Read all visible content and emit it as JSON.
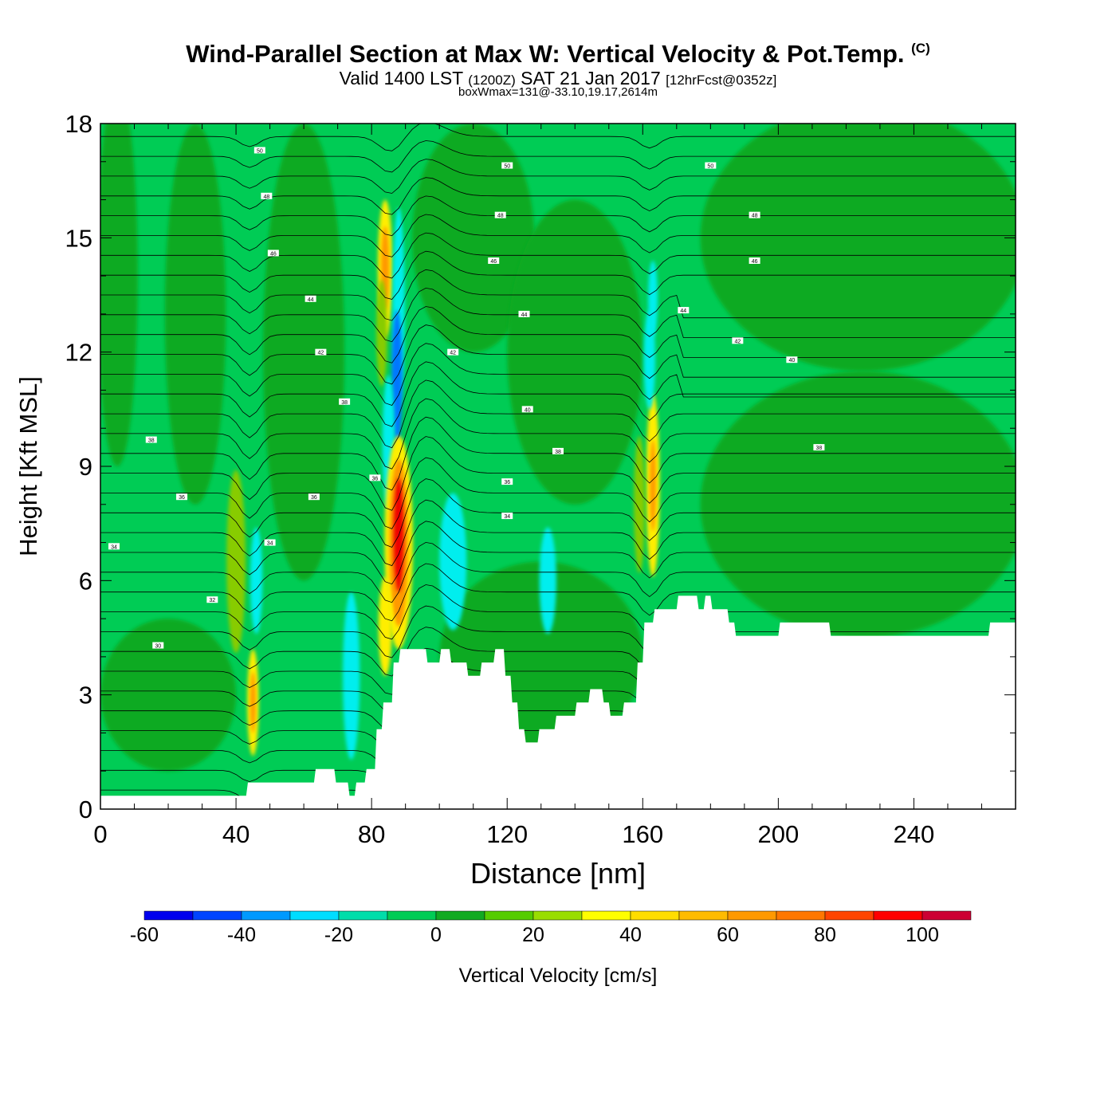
{
  "header": {
    "title": "Wind-Parallel Section at Max W: Vertical Velocity & Pot.Temp.",
    "copyright": "(C)",
    "subtitle_valid": "Valid 1400 LST",
    "subtitle_utc": "(1200Z)",
    "subtitle_date": "SAT 21 Jan 2017",
    "subtitle_fcst": "[12hrFcst@0352z]",
    "box_info": "boxWmax=131@-33.10,19.17,2614m"
  },
  "colors": {
    "background": "#00cc55",
    "terrain": "#ffffff",
    "contour": "#000000",
    "positive_light": "#11aa22",
    "positive_mid": "#88cc00",
    "updraft_yellow": "#ffee00",
    "updraft_orange": "#ff9900",
    "updraft_red": "#ee0000",
    "downdraft_cyan": "#00eeee",
    "downdraft_blue": "#0077ff"
  },
  "chart_data": {
    "type": "heatmap",
    "xlabel": "Distance [nm]",
    "ylabel": "Height [Kft MSL]",
    "xlim": [
      0,
      270
    ],
    "ylim": [
      0,
      18
    ],
    "x_ticks": [
      0,
      40,
      80,
      120,
      160,
      200,
      240
    ],
    "x_tick_labels": [
      "0",
      "40",
      "80",
      "120",
      "160",
      "200",
      "240"
    ],
    "y_ticks": [
      0,
      3,
      6,
      9,
      12,
      15,
      18
    ],
    "y_tick_labels": [
      "0",
      "3",
      "6",
      "9",
      "12",
      "15",
      "18"
    ],
    "colorbar": {
      "label": "Vertical Velocity [cm/s]",
      "levels": [
        -60,
        -50,
        -40,
        -30,
        -20,
        -10,
        0,
        10,
        20,
        30,
        40,
        50,
        60,
        70,
        80,
        90,
        100,
        110
      ],
      "tick_values": [
        -60,
        -40,
        -20,
        0,
        20,
        40,
        60,
        80,
        100
      ],
      "tick_labels": [
        "-60",
        "-40",
        "-20",
        "0",
        "20",
        "40",
        "60",
        "80",
        "100"
      ],
      "colors": [
        "#0000ee",
        "#0044ff",
        "#0099ff",
        "#00ddff",
        "#00ddaa",
        "#00cc55",
        "#11aa22",
        "#55cc00",
        "#99dd00",
        "#ffff00",
        "#ffdd00",
        "#ffbb00",
        "#ff9900",
        "#ff7700",
        "#ff4400",
        "#ff0000",
        "#cc0033"
      ]
    },
    "terrain_profile": {
      "x": [
        0,
        43,
        43.5,
        63,
        63.5,
        69,
        69.5,
        73,
        73.5,
        75,
        75.5,
        78,
        78.5,
        81,
        81.5,
        83,
        83.5,
        86,
        86.5,
        88,
        88.5,
        96,
        96.5,
        100,
        100.5,
        103,
        103.5,
        108,
        108.5,
        112,
        112.5,
        116,
        116.5,
        119,
        119.5,
        121,
        121.5,
        123,
        123.5,
        125,
        125.5,
        129,
        129.5,
        134,
        134.5,
        140,
        140.5,
        144,
        144.5,
        148,
        148.5,
        150,
        150.5,
        154,
        154.5,
        158,
        158.5,
        160,
        160.5,
        163,
        163.5,
        170,
        170.5,
        176,
        176.5,
        178,
        178.5,
        180,
        180.5,
        185,
        185.5,
        187,
        187.5,
        189,
        189.5,
        200,
        200.5,
        215,
        215.5,
        223,
        223.5,
        262,
        262.5,
        270
      ],
      "height_kft": [
        0.35,
        0.35,
        0.7,
        0.7,
        1.05,
        1.05,
        0.7,
        0.7,
        0.35,
        0.35,
        0.7,
        0.7,
        1.05,
        1.05,
        2.1,
        2.1,
        2.8,
        2.8,
        3.85,
        3.85,
        4.2,
        4.2,
        3.85,
        3.85,
        4.2,
        4.2,
        3.85,
        3.85,
        3.5,
        3.5,
        3.85,
        3.85,
        4.2,
        4.2,
        3.5,
        3.5,
        2.8,
        2.8,
        2.1,
        2.1,
        1.75,
        1.75,
        2.1,
        2.1,
        2.45,
        2.45,
        2.8,
        2.8,
        3.15,
        3.15,
        2.8,
        2.8,
        2.45,
        2.45,
        2.8,
        2.8,
        3.85,
        3.85,
        4.9,
        4.9,
        5.25,
        5.25,
        5.6,
        5.6,
        5.25,
        5.25,
        5.6,
        5.6,
        5.25,
        5.25,
        4.9,
        4.9,
        4.55,
        4.55,
        4.55,
        4.55,
        4.9,
        4.9,
        4.55,
        4.55,
        4.55,
        4.55,
        4.9,
        4.9
      ]
    },
    "theta_labels": [
      {
        "x": 17,
        "y": 4.3,
        "text": "30"
      },
      {
        "x": 33,
        "y": 5.5,
        "text": "32"
      },
      {
        "x": 4,
        "y": 6.9,
        "text": "34"
      },
      {
        "x": 50,
        "y": 7.0,
        "text": "34"
      },
      {
        "x": 24,
        "y": 8.2,
        "text": "36"
      },
      {
        "x": 63,
        "y": 8.2,
        "text": "36"
      },
      {
        "x": 15,
        "y": 9.7,
        "text": "38"
      },
      {
        "x": 72,
        "y": 10.7,
        "text": "38"
      },
      {
        "x": 65,
        "y": 12.0,
        "text": "42"
      },
      {
        "x": 62,
        "y": 13.4,
        "text": "44"
      },
      {
        "x": 51,
        "y": 14.6,
        "text": "46"
      },
      {
        "x": 49,
        "y": 16.1,
        "text": "48"
      },
      {
        "x": 47,
        "y": 17.3,
        "text": "50"
      },
      {
        "x": 81,
        "y": 8.7,
        "text": "36"
      },
      {
        "x": 104,
        "y": 12.0,
        "text": "42"
      },
      {
        "x": 120,
        "y": 7.7,
        "text": "34"
      },
      {
        "x": 120,
        "y": 8.6,
        "text": "36"
      },
      {
        "x": 135,
        "y": 9.4,
        "text": "38"
      },
      {
        "x": 126,
        "y": 10.5,
        "text": "40"
      },
      {
        "x": 125,
        "y": 13.0,
        "text": "44"
      },
      {
        "x": 116,
        "y": 14.4,
        "text": "46"
      },
      {
        "x": 118,
        "y": 15.6,
        "text": "48"
      },
      {
        "x": 120,
        "y": 16.9,
        "text": "50"
      },
      {
        "x": 172,
        "y": 13.1,
        "text": "44"
      },
      {
        "x": 188,
        "y": 12.3,
        "text": "42"
      },
      {
        "x": 204,
        "y": 11.8,
        "text": "40"
      },
      {
        "x": 212,
        "y": 9.5,
        "text": "38"
      },
      {
        "x": 193,
        "y": 14.4,
        "text": "46"
      },
      {
        "x": 193,
        "y": 15.6,
        "text": "48"
      },
      {
        "x": 180,
        "y": 16.9,
        "text": "50"
      }
    ]
  }
}
